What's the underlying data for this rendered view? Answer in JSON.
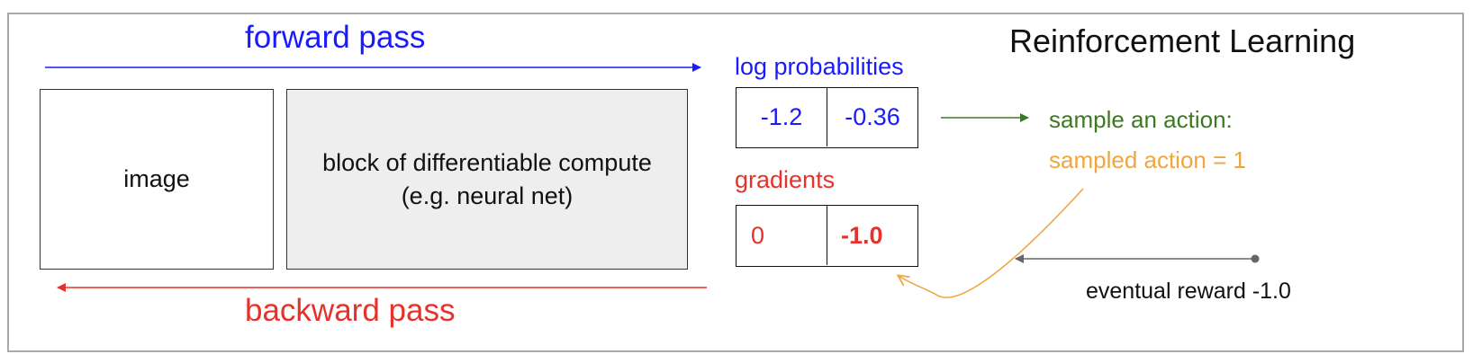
{
  "title": "Reinforcement Learning",
  "forward_pass": "forward pass",
  "backward_pass": "backward pass",
  "image_box": "image",
  "compute_box": {
    "line1": "block of differentiable compute",
    "line2": "(e.g. neural net)"
  },
  "log_probabilities": {
    "label": "log probabilities",
    "values": [
      "-1.2",
      "-0.36"
    ]
  },
  "gradients": {
    "label": "gradients",
    "values": [
      "0",
      "-1.0"
    ]
  },
  "sample": {
    "label": "sample an action:",
    "result": "sampled action = 1"
  },
  "reward": "eventual reward -1.0",
  "colors": {
    "forward": "#1a1aff",
    "backward": "#e8312a",
    "sample": "#3d7a1f",
    "sampled": "#f0a640",
    "reward_arrow": "#666666"
  }
}
